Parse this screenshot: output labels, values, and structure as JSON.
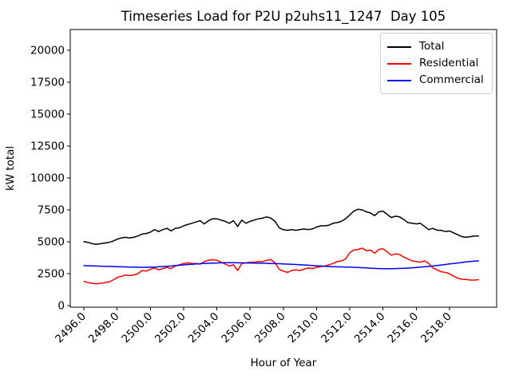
{
  "figure": {
    "title": "Timeseries Load for P2U p2uhs11_1247  Day 105",
    "x_axis_label": "Hour of Year",
    "y_axis_label": "kW total"
  },
  "legend": {
    "position": "top-right",
    "entries": [
      {
        "label": "Total",
        "color": "#000000"
      },
      {
        "label": "Residential",
        "color": "#ff0000"
      },
      {
        "label": "Commercial",
        "color": "#0000ff"
      }
    ]
  },
  "chart_data": {
    "type": "line",
    "title": "Timeseries Load for P2U p2uhs11_1247  Day 105",
    "xlabel": "Hour of Year",
    "ylabel": "kW total",
    "xlim": [
      2495.18,
      2520.84
    ],
    "ylim": [
      -125,
      21625
    ],
    "xticks": [
      2496,
      2498,
      2500,
      2502,
      2504,
      2506,
      2508,
      2510,
      2512,
      2514,
      2516,
      2518
    ],
    "xtick_labels": [
      "2496.0",
      "2498.0",
      "2500.0",
      "2502.0",
      "2504.0",
      "2506.0",
      "2508.0",
      "2510.0",
      "2512.0",
      "2514.0",
      "2516.0",
      "2518.0"
    ],
    "yticks": [
      0,
      2500,
      5000,
      7500,
      10000,
      12500,
      15000,
      17500,
      20000
    ],
    "xtick_rotation_deg": 45,
    "grid": false,
    "legend_position": "upper right",
    "x_step_hours": 0.25,
    "x": [
      2496.0,
      2496.25,
      2496.5,
      2496.75,
      2497.0,
      2497.25,
      2497.5,
      2497.75,
      2498.0,
      2498.25,
      2498.5,
      2498.75,
      2499.0,
      2499.25,
      2499.5,
      2499.75,
      2500.0,
      2500.25,
      2500.5,
      2500.75,
      2501.0,
      2501.25,
      2501.5,
      2501.75,
      2502.0,
      2502.25,
      2502.5,
      2502.75,
      2503.0,
      2503.25,
      2503.5,
      2503.75,
      2504.0,
      2504.25,
      2504.5,
      2504.75,
      2505.0,
      2505.25,
      2505.5,
      2505.75,
      2506.0,
      2506.25,
      2506.5,
      2506.75,
      2507.0,
      2507.25,
      2507.5,
      2507.75,
      2508.0,
      2508.25,
      2508.5,
      2508.75,
      2509.0,
      2509.25,
      2509.5,
      2509.75,
      2510.0,
      2510.25,
      2510.5,
      2510.75,
      2511.0,
      2511.25,
      2511.5,
      2511.75,
      2512.0,
      2512.25,
      2512.5,
      2512.75,
      2513.0,
      2513.25,
      2513.5,
      2513.75,
      2514.0,
      2514.25,
      2514.5,
      2514.75,
      2515.0,
      2515.25,
      2515.5,
      2515.75,
      2516.0,
      2516.25,
      2516.5,
      2516.75,
      2517.0,
      2517.25,
      2517.5,
      2517.75,
      2518.0,
      2518.25,
      2518.5,
      2518.75,
      2519.0,
      2519.25,
      2519.5,
      2519.75
    ],
    "series": [
      {
        "name": "Total",
        "color": "#000000",
        "values": [
          5000,
          4950,
          4850,
          4800,
          4850,
          4900,
          4950,
          5050,
          5200,
          5300,
          5350,
          5300,
          5350,
          5450,
          5600,
          5650,
          5750,
          5950,
          5800,
          5950,
          6050,
          5850,
          6050,
          6100,
          6250,
          6350,
          6450,
          6550,
          6650,
          6400,
          6650,
          6800,
          6800,
          6700,
          6600,
          6450,
          6650,
          6200,
          6700,
          6450,
          6600,
          6700,
          6800,
          6850,
          6950,
          6850,
          6600,
          6100,
          5950,
          5900,
          5950,
          5900,
          5950,
          6000,
          5950,
          6000,
          6150,
          6250,
          6250,
          6300,
          6450,
          6500,
          6600,
          6800,
          7100,
          7400,
          7550,
          7500,
          7350,
          7250,
          7050,
          7350,
          7400,
          7150,
          6900,
          7000,
          6950,
          6750,
          6500,
          6450,
          6400,
          6450,
          6200,
          5950,
          6050,
          5900,
          5900,
          5800,
          5850,
          5700,
          5550,
          5400,
          5350,
          5400,
          5450,
          5450
        ]
      },
      {
        "name": "Residential",
        "color": "#ff0000",
        "values": [
          1900,
          1800,
          1750,
          1700,
          1750,
          1800,
          1850,
          2000,
          2200,
          2300,
          2400,
          2350,
          2400,
          2500,
          2750,
          2700,
          2850,
          2950,
          2800,
          2900,
          3000,
          2900,
          3100,
          3200,
          3300,
          3350,
          3300,
          3300,
          3250,
          3450,
          3550,
          3600,
          3550,
          3400,
          3250,
          3100,
          3200,
          2750,
          3300,
          3350,
          3400,
          3400,
          3450,
          3450,
          3550,
          3600,
          3350,
          2850,
          2700,
          2600,
          2750,
          2800,
          2750,
          2850,
          2950,
          2900,
          3000,
          3050,
          3100,
          3200,
          3300,
          3450,
          3500,
          3650,
          4150,
          4350,
          4400,
          4500,
          4300,
          4350,
          4100,
          4400,
          4450,
          4200,
          3950,
          4050,
          4000,
          3800,
          3650,
          3500,
          3450,
          3400,
          3500,
          3300,
          2950,
          2800,
          2650,
          2600,
          2500,
          2300,
          2150,
          2060,
          2050,
          2000,
          2000,
          2030
        ]
      },
      {
        "name": "Commercial",
        "color": "#0000ff",
        "values": [
          3130,
          3120,
          3110,
          3100,
          3090,
          3080,
          3070,
          3060,
          3050,
          3040,
          3030,
          3020,
          3010,
          3000,
          3000,
          3000,
          3010,
          3020,
          3040,
          3060,
          3080,
          3100,
          3130,
          3160,
          3190,
          3220,
          3240,
          3260,
          3280,
          3300,
          3320,
          3330,
          3340,
          3350,
          3360,
          3360,
          3360,
          3350,
          3350,
          3340,
          3340,
          3330,
          3330,
          3320,
          3310,
          3300,
          3290,
          3280,
          3270,
          3250,
          3240,
          3220,
          3200,
          3180,
          3160,
          3140,
          3120,
          3100,
          3080,
          3060,
          3050,
          3040,
          3030,
          3020,
          3010,
          3000,
          2990,
          2970,
          2950,
          2930,
          2910,
          2900,
          2890,
          2890,
          2890,
          2900,
          2910,
          2920,
          2940,
          2960,
          2980,
          3010,
          3040,
          3070,
          3100,
          3140,
          3180,
          3220,
          3260,
          3300,
          3340,
          3380,
          3420,
          3450,
          3480,
          3500
        ]
      }
    ]
  }
}
